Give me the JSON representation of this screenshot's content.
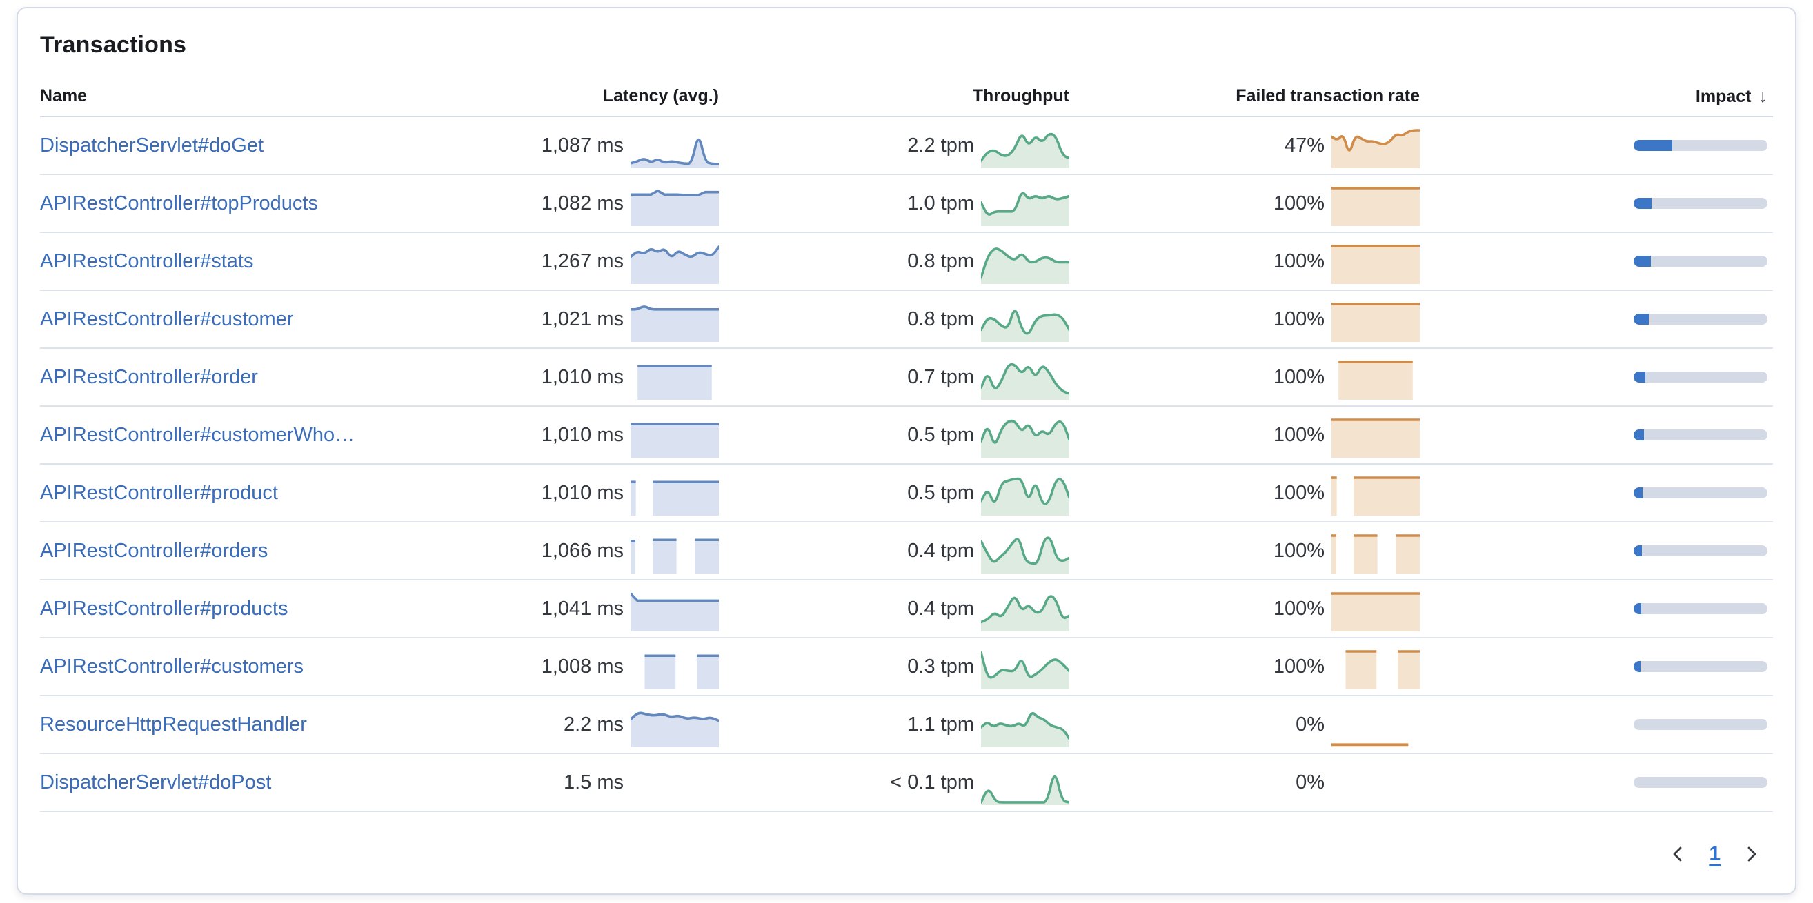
{
  "card": {
    "title": "Transactions"
  },
  "colors": {
    "latency_line": "#6288BE",
    "latency_fill": "#DAE2F1",
    "throughput_line": "#58A987",
    "throughput_fill": "#DDEBE1",
    "failed_line": "#D08C48",
    "failed_fill": "#F3E3CF",
    "impact_fill": "#3B77C6",
    "impact_track": "#D3DAE6",
    "link": "#3A6CB8",
    "text": "#33373E",
    "header_text": "#1A1C21"
  },
  "table": {
    "columns": [
      {
        "id": "name",
        "label": "Name",
        "align": "left"
      },
      {
        "id": "latency",
        "label": "Latency (avg.)",
        "align": "right"
      },
      {
        "id": "throughput",
        "label": "Throughput",
        "align": "right"
      },
      {
        "id": "failed",
        "label": "Failed transaction rate",
        "align": "right"
      },
      {
        "id": "impact",
        "label": "Impact",
        "align": "right",
        "sorted": "desc",
        "sort_icon": "↓"
      }
    ],
    "rows": [
      {
        "name": "DispatcherServlet#doGet",
        "latency": "1,087 ms",
        "throughput": "2.2 tpm",
        "failed_rate": "47%",
        "impact_pct": 29,
        "latency_spark": {
          "type": "line",
          "smooth": true,
          "values": [
            0.08,
            0.13,
            0.22,
            0.1,
            0.2,
            0.09,
            0.14,
            0.1,
            0.07,
            0.07,
            0.95,
            0.12,
            0.06,
            0.06
          ]
        },
        "throughput_spark": {
          "type": "line",
          "smooth": true,
          "values": [
            0.15,
            0.4,
            0.45,
            0.3,
            0.28,
            0.5,
            0.95,
            0.55,
            0.85,
            0.65,
            0.92,
            0.85,
            0.3,
            0.22
          ]
        },
        "failed_spark": {
          "type": "line",
          "smooth": true,
          "values": [
            0.82,
            0.72,
            0.9,
            0.3,
            0.85,
            0.78,
            0.68,
            0.7,
            0.64,
            0.6,
            0.7,
            0.9,
            0.84,
            0.96,
            1.0,
            1.0
          ]
        }
      },
      {
        "name": "APIRestController#topProducts",
        "latency": "1,082 ms",
        "throughput": "1.0 tpm",
        "failed_rate": "100%",
        "impact_pct": 13.5,
        "latency_spark": {
          "type": "line",
          "smooth": false,
          "values": [
            0.82,
            0.82,
            0.82,
            0.82,
            0.93,
            0.82,
            0.82,
            0.82,
            0.81,
            0.81,
            0.81,
            0.89,
            0.89,
            0.89
          ]
        },
        "throughput_spark": {
          "type": "line",
          "smooth": true,
          "values": [
            0.6,
            0.22,
            0.35,
            0.35,
            0.35,
            0.35,
            0.95,
            0.68,
            0.8,
            0.7,
            0.8,
            0.68,
            0.72,
            0.78
          ]
        },
        "failed_spark": {
          "type": "blocks",
          "segments": [
            [
              0,
              1,
              1
            ]
          ]
        }
      },
      {
        "name": "APIRestController#stats",
        "latency": "1,267 ms",
        "throughput": "0.8 tpm",
        "failed_rate": "100%",
        "impact_pct": 13,
        "latency_spark": {
          "type": "line",
          "smooth": true,
          "values": [
            0.7,
            0.86,
            0.78,
            0.94,
            0.82,
            0.94,
            0.66,
            0.88,
            0.76,
            0.68,
            0.84,
            0.78,
            0.72,
            0.98
          ]
        },
        "throughput_spark": {
          "type": "line",
          "smooth": true,
          "values": [
            0.12,
            0.72,
            0.95,
            0.88,
            0.7,
            0.6,
            0.82,
            0.55,
            0.55,
            0.68,
            0.68,
            0.55,
            0.55,
            0.55
          ]
        },
        "failed_spark": {
          "type": "blocks",
          "segments": [
            [
              0,
              1,
              1
            ]
          ]
        }
      },
      {
        "name": "APIRestController#customer",
        "latency": "1,021 ms",
        "throughput": "0.8 tpm",
        "failed_rate": "100%",
        "impact_pct": 11.5,
        "latency_spark": {
          "type": "line",
          "smooth": true,
          "values": [
            0.85,
            0.85,
            0.95,
            0.85,
            0.85,
            0.85,
            0.85,
            0.85,
            0.85,
            0.85,
            0.85,
            0.85,
            0.85,
            0.85
          ]
        },
        "throughput_spark": {
          "type": "line",
          "smooth": true,
          "values": [
            0.28,
            0.62,
            0.58,
            0.38,
            0.32,
            0.97,
            0.28,
            0.12,
            0.55,
            0.68,
            0.68,
            0.72,
            0.62,
            0.28
          ]
        },
        "failed_spark": {
          "type": "blocks",
          "segments": [
            [
              0,
              1,
              1
            ]
          ]
        }
      },
      {
        "name": "APIRestController#order",
        "latency": "1,010 ms",
        "throughput": "0.7 tpm",
        "failed_rate": "100%",
        "impact_pct": 9,
        "latency_spark": {
          "type": "blocks",
          "segments": [
            [
              0.08,
              0.92,
              0.88
            ]
          ]
        },
        "throughput_spark": {
          "type": "line",
          "smooth": true,
          "values": [
            0.28,
            0.72,
            0.18,
            0.45,
            0.93,
            0.93,
            0.65,
            0.93,
            0.55,
            0.93,
            0.72,
            0.38,
            0.18,
            0.12
          ]
        },
        "failed_spark": {
          "type": "blocks",
          "segments": [
            [
              0.08,
              0.92,
              1
            ]
          ]
        }
      },
      {
        "name": "APIRestController#customerWho…",
        "latency": "1,010 ms",
        "throughput": "0.5 tpm",
        "failed_rate": "100%",
        "impact_pct": 7.5,
        "latency_spark": {
          "type": "blocks",
          "segments": [
            [
              0,
              1,
              0.88
            ]
          ]
        },
        "throughput_spark": {
          "type": "line",
          "smooth": true,
          "values": [
            0.4,
            0.88,
            0.22,
            0.75,
            0.97,
            0.97,
            0.65,
            0.92,
            0.5,
            0.72,
            0.55,
            0.92,
            0.97,
            0.45
          ]
        },
        "failed_spark": {
          "type": "blocks",
          "segments": [
            [
              0,
              1,
              1
            ]
          ]
        }
      },
      {
        "name": "APIRestController#product",
        "latency": "1,010 ms",
        "throughput": "0.5 tpm",
        "failed_rate": "100%",
        "impact_pct": 6.5,
        "latency_spark": {
          "type": "blocks",
          "segments": [
            [
              0,
              0.06,
              0.88
            ],
            [
              0.25,
              1,
              0.88
            ]
          ]
        },
        "throughput_spark": {
          "type": "line",
          "smooth": true,
          "values": [
            0.35,
            0.7,
            0.2,
            0.85,
            0.92,
            0.97,
            0.97,
            0.3,
            0.95,
            0.25,
            0.3,
            0.95,
            0.97,
            0.45
          ]
        },
        "failed_spark": {
          "type": "blocks",
          "segments": [
            [
              0,
              0.06,
              1
            ],
            [
              0.25,
              1,
              1
            ]
          ]
        }
      },
      {
        "name": "APIRestController#orders",
        "latency": "1,066 ms",
        "throughput": "0.4 tpm",
        "failed_rate": "100%",
        "impact_pct": 6,
        "latency_spark": {
          "type": "blocks",
          "segments": [
            [
              0,
              0.055,
              0.85
            ],
            [
              0.25,
              0.52,
              0.88
            ],
            [
              0.73,
              1,
              0.88
            ]
          ]
        },
        "throughput_spark": {
          "type": "line",
          "smooth": true,
          "values": [
            0.85,
            0.5,
            0.22,
            0.4,
            0.55,
            0.8,
            0.97,
            0.3,
            0.22,
            0.22,
            0.9,
            0.97,
            0.35,
            0.28,
            0.38
          ]
        },
        "failed_spark": {
          "type": "blocks",
          "segments": [
            [
              0,
              0.055,
              1
            ],
            [
              0.25,
              0.52,
              1
            ],
            [
              0.73,
              1,
              1
            ]
          ]
        }
      },
      {
        "name": "APIRestController#products",
        "latency": "1,041 ms",
        "throughput": "0.4 tpm",
        "failed_rate": "100%",
        "impact_pct": 5.8,
        "latency_spark": {
          "type": "line",
          "smooth": false,
          "values": [
            1.0,
            0.8,
            0.8,
            0.8,
            0.8,
            0.8,
            0.8,
            0.8,
            0.8,
            0.8,
            0.8,
            0.8,
            0.8,
            0.8
          ]
        },
        "throughput_spark": {
          "type": "line",
          "smooth": true,
          "values": [
            0.2,
            0.28,
            0.48,
            0.32,
            0.65,
            0.97,
            0.5,
            0.7,
            0.45,
            0.5,
            0.97,
            0.85,
            0.28,
            0.38
          ]
        },
        "failed_spark": {
          "type": "blocks",
          "segments": [
            [
              0,
              1,
              1
            ]
          ]
        }
      },
      {
        "name": "APIRestController#customers",
        "latency": "1,008 ms",
        "throughput": "0.3 tpm",
        "failed_rate": "100%",
        "impact_pct": 5.2,
        "latency_spark": {
          "type": "blocks",
          "segments": [
            [
              0.16,
              0.51,
              0.88
            ],
            [
              0.75,
              1,
              0.88
            ]
          ]
        },
        "throughput_spark": {
          "type": "line",
          "smooth": true,
          "values": [
            0.97,
            0.25,
            0.3,
            0.5,
            0.45,
            0.45,
            0.85,
            0.25,
            0.35,
            0.5,
            0.7,
            0.8,
            0.65,
            0.45
          ]
        },
        "failed_spark": {
          "type": "blocks",
          "segments": [
            [
              0.16,
              0.51,
              1
            ],
            [
              0.75,
              1,
              1
            ]
          ]
        }
      },
      {
        "name": "ResourceHttpRequestHandler",
        "latency": "2.2 ms",
        "throughput": "1.1 tpm",
        "failed_rate": "0%",
        "impact_pct": 0,
        "latency_spark": {
          "type": "line",
          "smooth": true,
          "values": [
            0.72,
            0.92,
            0.86,
            0.82,
            0.88,
            0.78,
            0.83,
            0.73,
            0.78,
            0.72,
            0.78,
            0.68
          ]
        },
        "throughput_spark": {
          "type": "line",
          "smooth": true,
          "values": [
            0.5,
            0.65,
            0.5,
            0.62,
            0.55,
            0.52,
            0.62,
            0.5,
            0.95,
            0.78,
            0.72,
            0.55,
            0.5,
            0.45,
            0.18
          ]
        },
        "failed_spark": {
          "type": "blocks",
          "segments": [
            [
              0,
              0.87,
              0.015
            ]
          ]
        }
      },
      {
        "name": "DispatcherServlet#doPost",
        "latency": "1.5 ms",
        "throughput": "< 0.1 tpm",
        "failed_rate": "0%",
        "impact_pct": 0,
        "latency_spark": null,
        "throughput_spark": {
          "type": "line",
          "smooth": true,
          "values": [
            0.02,
            0.45,
            0.03,
            0.02,
            0.02,
            0.02,
            0.02,
            0.02,
            0.02,
            0.02,
            0.97,
            0.06,
            0.02
          ]
        },
        "failed_spark": null
      }
    ]
  },
  "pagination": {
    "page": "1"
  }
}
